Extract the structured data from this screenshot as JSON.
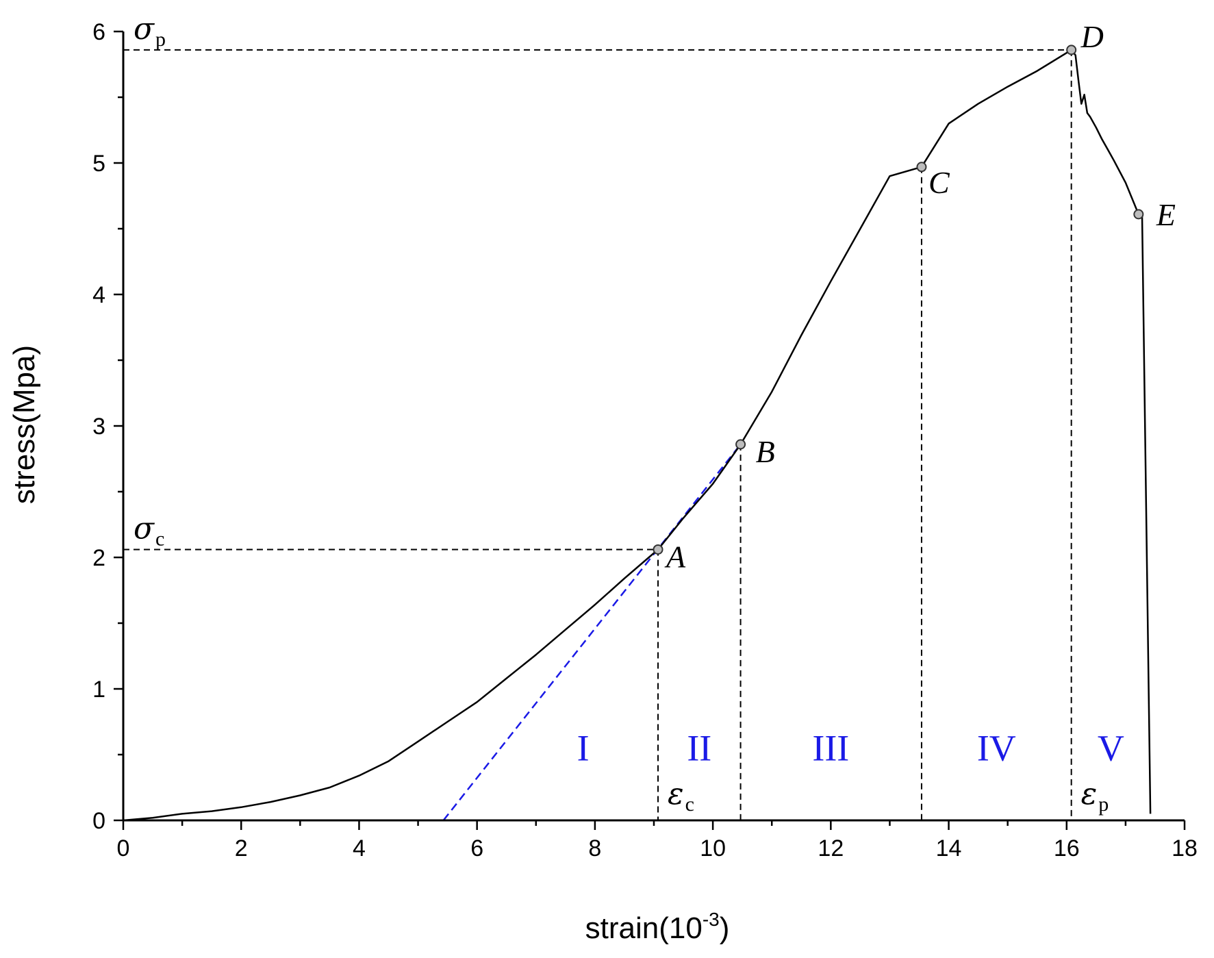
{
  "chart_data": {
    "type": "line",
    "title": "",
    "xlabel": "strain(10",
    "xlabel_sup": "-3",
    "xlabel_close": ")",
    "ylabel": "stress(Mpa)",
    "xlim": [
      0,
      18
    ],
    "ylim": [
      0,
      6
    ],
    "x_ticks": [
      0,
      2,
      4,
      6,
      8,
      10,
      12,
      14,
      16,
      18
    ],
    "y_ticks": [
      0,
      1,
      2,
      3,
      4,
      5,
      6
    ],
    "x_tick_labels": [
      "0",
      "2",
      "4",
      "6",
      "8",
      "10",
      "12",
      "14",
      "16",
      "18"
    ],
    "y_tick_labels": [
      "0",
      "1",
      "2",
      "3",
      "4",
      "5",
      "6"
    ],
    "grid": false,
    "legend": "none",
    "series": [
      {
        "color": "#000000",
        "x": [
          0,
          0.5,
          1,
          1.5,
          2,
          2.5,
          3,
          3.5,
          4,
          4.5,
          5,
          5.5,
          6,
          6.5,
          7,
          7.5,
          8,
          8.5,
          9.07,
          9.5,
          10,
          10.47,
          11,
          11.5,
          12,
          12.5,
          13,
          13.54,
          14,
          14.5,
          15,
          15.5,
          16.08,
          16.15,
          16.2,
          16.25,
          16.3,
          16.35,
          16.4,
          16.5,
          16.6,
          16.7,
          16.8,
          17.0,
          17.22,
          17.28,
          17.42
        ],
        "y": [
          0,
          0.02,
          0.05,
          0.07,
          0.1,
          0.14,
          0.19,
          0.25,
          0.34,
          0.45,
          0.6,
          0.75,
          0.9,
          1.08,
          1.26,
          1.45,
          1.64,
          1.84,
          2.06,
          2.3,
          2.56,
          2.86,
          3.26,
          3.69,
          4.1,
          4.5,
          4.9,
          4.97,
          5.3,
          5.45,
          5.58,
          5.7,
          5.86,
          5.82,
          5.63,
          5.45,
          5.52,
          5.38,
          5.35,
          5.27,
          5.18,
          5.1,
          5.02,
          4.85,
          4.61,
          4.6,
          0.05
        ]
      }
    ],
    "tangent_line": {
      "color": "#1a1ae6",
      "x": [
        5.43,
        10.47
      ],
      "y": [
        0,
        2.86
      ]
    },
    "points": [
      {
        "label": "A",
        "x": 9.07,
        "y": 2.06
      },
      {
        "label": "B",
        "x": 10.47,
        "y": 2.86
      },
      {
        "label": "C",
        "x": 13.54,
        "y": 4.97
      },
      {
        "label": "D",
        "x": 16.08,
        "y": 5.86
      },
      {
        "label": "E",
        "x": 17.22,
        "y": 4.61
      }
    ],
    "reference_lines": {
      "horizontal": [
        {
          "symbol": "σ",
          "sub": "c",
          "y": 2.06,
          "x_end": 9.07
        },
        {
          "symbol": "σ",
          "sub": "p",
          "y": 5.86,
          "x_end": 16.08
        }
      ],
      "vertical": [
        {
          "x": 9.07,
          "y_top": 2.06,
          "symbol": "ε",
          "sub": "c"
        },
        {
          "x": 10.47,
          "y_top": 2.86
        },
        {
          "x": 13.54,
          "y_top": 4.97
        },
        {
          "x": 16.08,
          "y_top": 5.86,
          "symbol": "ε",
          "sub": "p"
        }
      ]
    },
    "regions": [
      {
        "label": "I",
        "x": 7.8,
        "y": 0.55
      },
      {
        "label": "II",
        "x": 9.77,
        "y": 0.55
      },
      {
        "label": "III",
        "x": 12.0,
        "y": 0.55
      },
      {
        "label": "IV",
        "x": 14.81,
        "y": 0.55
      },
      {
        "label": "V",
        "x": 16.75,
        "y": 0.55
      }
    ]
  }
}
